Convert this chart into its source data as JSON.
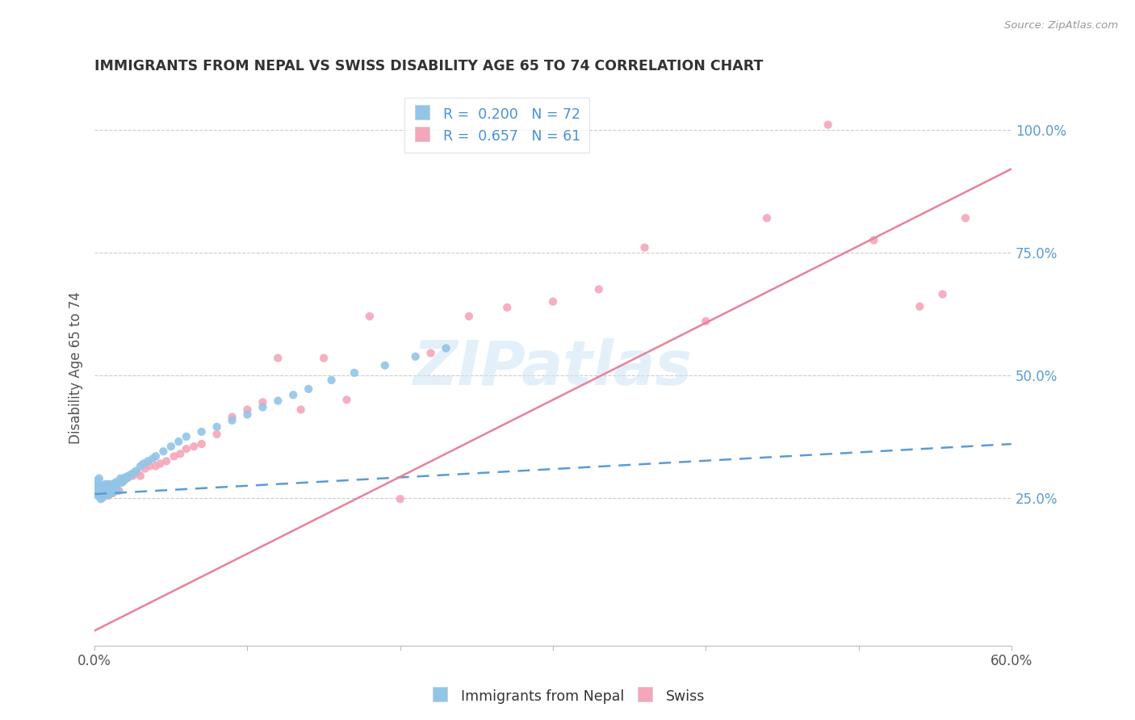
{
  "title": "IMMIGRANTS FROM NEPAL VS SWISS DISABILITY AGE 65 TO 74 CORRELATION CHART",
  "source": "Source: ZipAtlas.com",
  "ylabel": "Disability Age 65 to 74",
  "xlim": [
    0.0,
    0.6
  ],
  "ylim": [
    -0.05,
    1.08
  ],
  "yticks_right": [
    0.25,
    0.5,
    0.75,
    1.0
  ],
  "ytickslabels_right": [
    "25.0%",
    "50.0%",
    "75.0%",
    "100.0%"
  ],
  "legend_labels": [
    "Immigrants from Nepal",
    "Swiss"
  ],
  "legend_R": [
    0.2,
    0.657
  ],
  "legend_N": [
    72,
    61
  ],
  "color_blue": "#92c5e8",
  "color_pink": "#f4a7b9",
  "color_blue_line": "#5b9bd5",
  "color_pink_line": "#e8829a",
  "color_right_axis": "#5b9bd5",
  "nepal_x": [
    0.001,
    0.001,
    0.001,
    0.002,
    0.002,
    0.002,
    0.003,
    0.003,
    0.003,
    0.003,
    0.004,
    0.004,
    0.004,
    0.004,
    0.005,
    0.005,
    0.005,
    0.005,
    0.006,
    0.006,
    0.006,
    0.007,
    0.007,
    0.007,
    0.008,
    0.008,
    0.009,
    0.009,
    0.01,
    0.01,
    0.01,
    0.011,
    0.011,
    0.012,
    0.012,
    0.013,
    0.013,
    0.014,
    0.015,
    0.015,
    0.016,
    0.017,
    0.018,
    0.019,
    0.02,
    0.021,
    0.022,
    0.024,
    0.025,
    0.027,
    0.03,
    0.032,
    0.035,
    0.038,
    0.04,
    0.045,
    0.05,
    0.055,
    0.06,
    0.07,
    0.08,
    0.09,
    0.1,
    0.11,
    0.12,
    0.13,
    0.14,
    0.155,
    0.17,
    0.19,
    0.21,
    0.23
  ],
  "nepal_y": [
    0.27,
    0.26,
    0.285,
    0.265,
    0.28,
    0.255,
    0.275,
    0.265,
    0.258,
    0.29,
    0.268,
    0.258,
    0.27,
    0.248,
    0.265,
    0.26,
    0.272,
    0.25,
    0.268,
    0.255,
    0.262,
    0.278,
    0.262,
    0.255,
    0.27,
    0.26,
    0.268,
    0.278,
    0.265,
    0.272,
    0.258,
    0.275,
    0.265,
    0.272,
    0.262,
    0.28,
    0.27,
    0.282,
    0.278,
    0.265,
    0.285,
    0.29,
    0.282,
    0.285,
    0.292,
    0.29,
    0.295,
    0.298,
    0.3,
    0.305,
    0.315,
    0.32,
    0.325,
    0.33,
    0.335,
    0.345,
    0.355,
    0.365,
    0.375,
    0.385,
    0.395,
    0.408,
    0.42,
    0.435,
    0.448,
    0.46,
    0.472,
    0.49,
    0.505,
    0.52,
    0.538,
    0.555
  ],
  "swiss_x": [
    0.001,
    0.002,
    0.002,
    0.003,
    0.003,
    0.004,
    0.005,
    0.005,
    0.006,
    0.006,
    0.007,
    0.008,
    0.008,
    0.009,
    0.01,
    0.01,
    0.011,
    0.012,
    0.013,
    0.014,
    0.015,
    0.016,
    0.018,
    0.02,
    0.022,
    0.025,
    0.028,
    0.03,
    0.033,
    0.036,
    0.04,
    0.043,
    0.047,
    0.052,
    0.056,
    0.06,
    0.065,
    0.07,
    0.08,
    0.09,
    0.1,
    0.11,
    0.12,
    0.135,
    0.15,
    0.165,
    0.18,
    0.2,
    0.22,
    0.245,
    0.27,
    0.3,
    0.33,
    0.36,
    0.4,
    0.44,
    0.48,
    0.51,
    0.54,
    0.555,
    0.57
  ],
  "swiss_y": [
    0.26,
    0.265,
    0.258,
    0.27,
    0.255,
    0.258,
    0.265,
    0.275,
    0.258,
    0.265,
    0.27,
    0.26,
    0.272,
    0.255,
    0.268,
    0.278,
    0.265,
    0.26,
    0.275,
    0.27,
    0.278,
    0.265,
    0.282,
    0.288,
    0.292,
    0.295,
    0.3,
    0.295,
    0.31,
    0.315,
    0.315,
    0.32,
    0.325,
    0.335,
    0.34,
    0.35,
    0.355,
    0.36,
    0.38,
    0.415,
    0.43,
    0.445,
    0.535,
    0.43,
    0.535,
    0.45,
    0.62,
    0.248,
    0.545,
    0.62,
    0.638,
    0.65,
    0.675,
    0.76,
    0.61,
    0.82,
    1.01,
    0.775,
    0.64,
    0.665,
    0.82
  ],
  "nepal_line_x": [
    0.0,
    0.6
  ],
  "nepal_line_y": [
    0.258,
    0.36
  ],
  "swiss_line_x": [
    0.0,
    0.6
  ],
  "swiss_line_y": [
    -0.02,
    0.92
  ]
}
